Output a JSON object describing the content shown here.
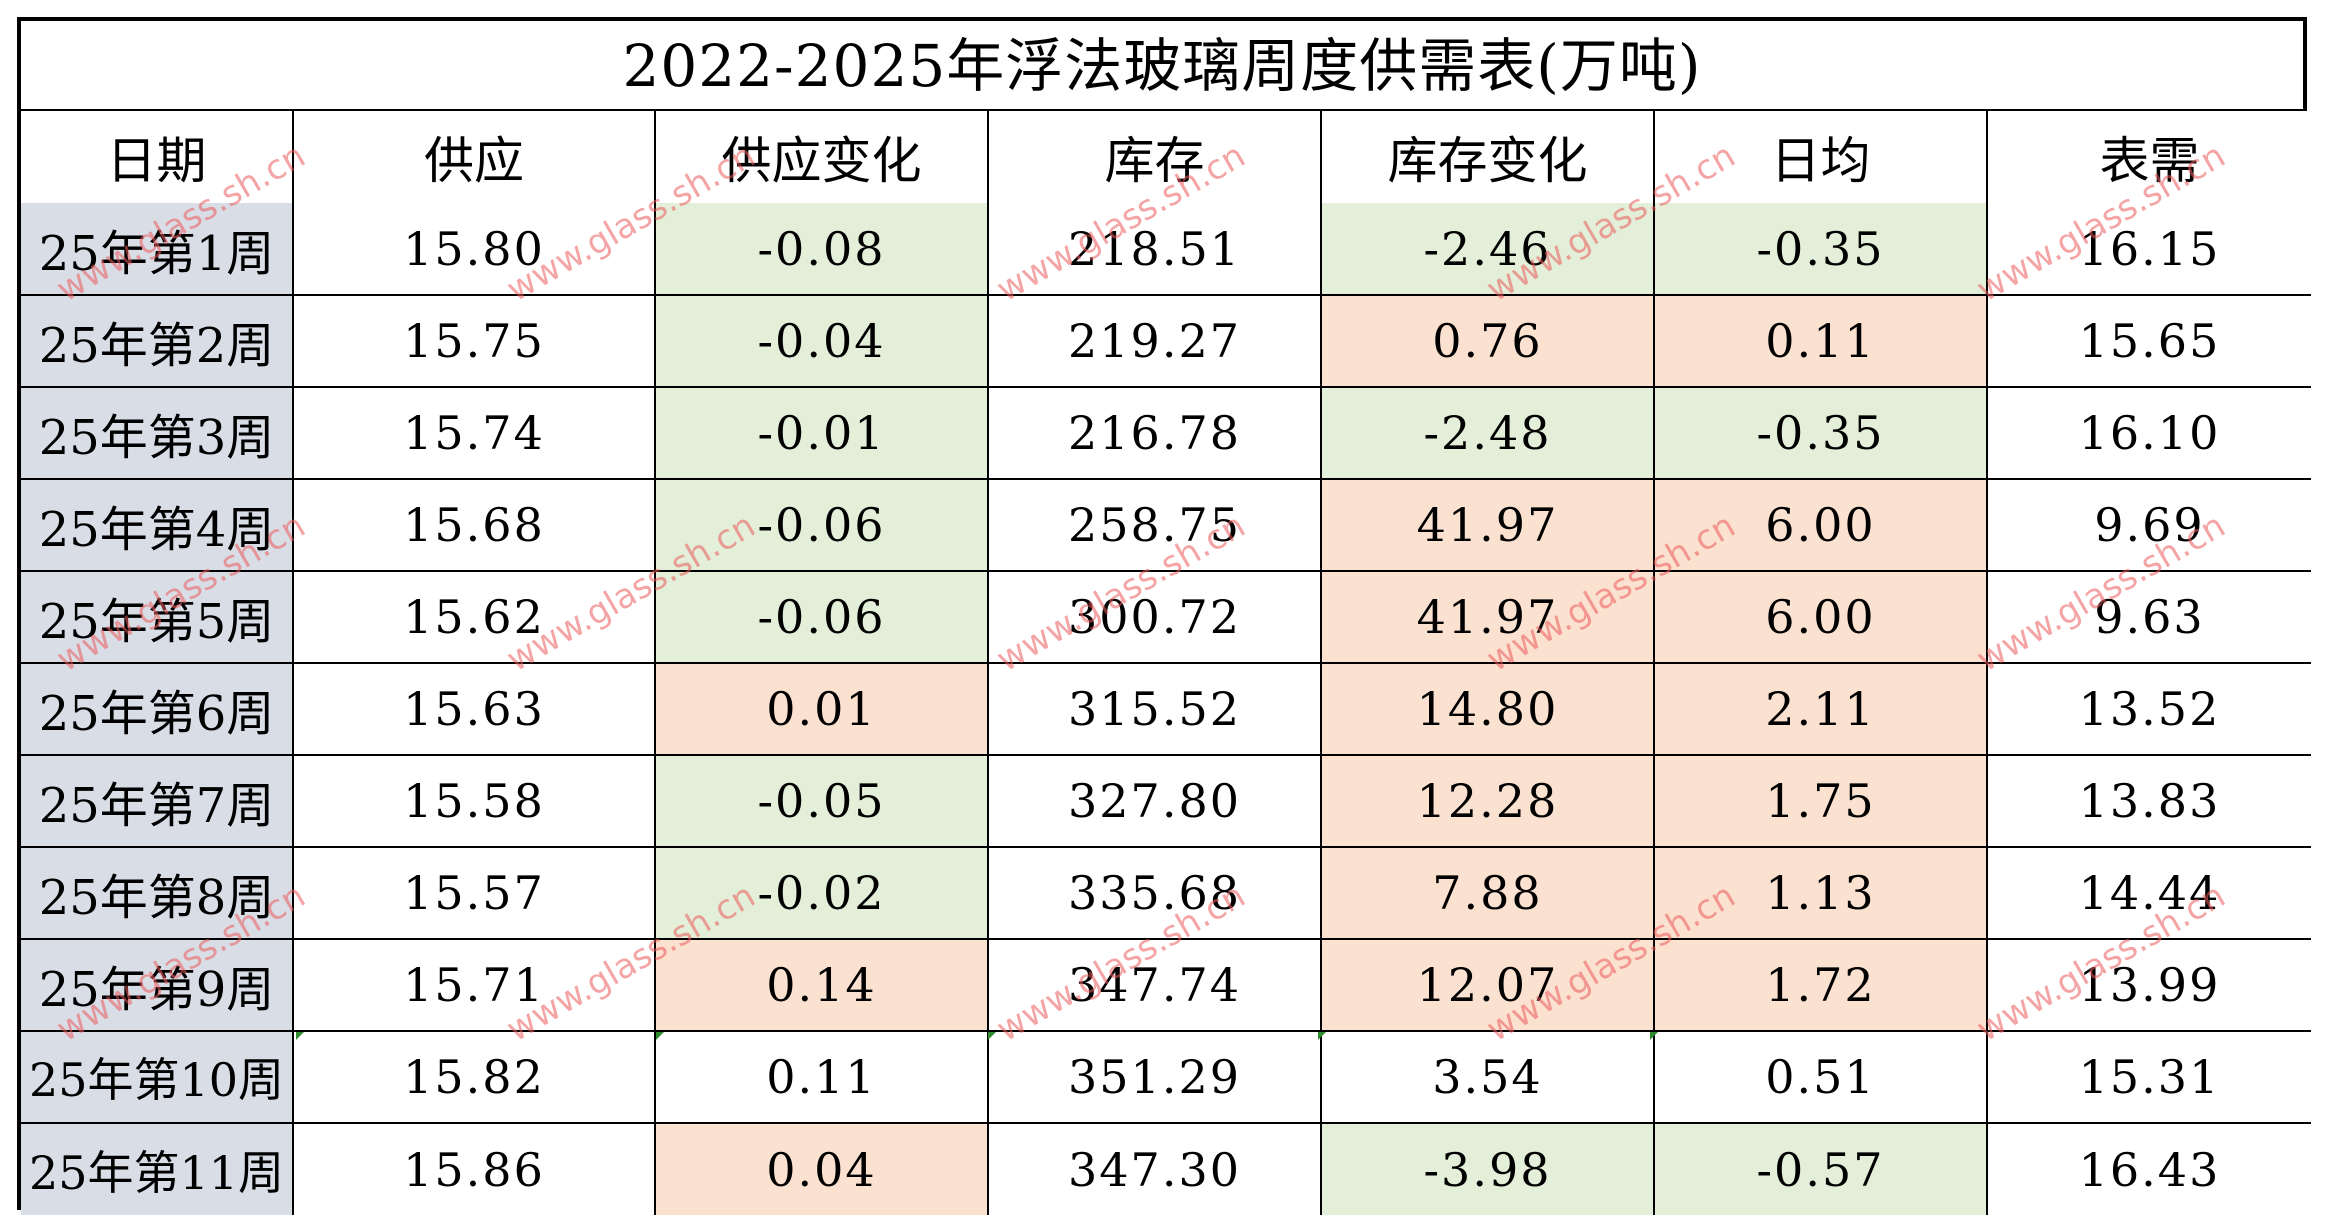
{
  "title": "2022-2025年浮法玻璃周度供需表(万吨)",
  "headers": [
    "日期",
    "供应",
    "供应变化",
    "库存",
    "库存变化",
    "日均",
    "表需"
  ],
  "watermark": "www.glass.sh.cn",
  "colors": {
    "date_bg": "#d9dde6",
    "negative_bg": "#e3efd9",
    "positive_bg": "#fbe1d0",
    "border": "#000000",
    "watermark": "#eb5a5a"
  },
  "rows": [
    {
      "date": "25年第1周",
      "supply": "15.80",
      "supply_change": "-0.08",
      "inventory": "218.51",
      "inventory_change": "-2.46",
      "daily_avg": "-0.35",
      "demand": "16.15",
      "shade": [
        "neg",
        "neg",
        "neg"
      ]
    },
    {
      "date": "25年第2周",
      "supply": "15.75",
      "supply_change": "-0.04",
      "inventory": "219.27",
      "inventory_change": "0.76",
      "daily_avg": "0.11",
      "demand": "15.65",
      "shade": [
        "neg",
        "pos",
        "pos"
      ]
    },
    {
      "date": "25年第3周",
      "supply": "15.74",
      "supply_change": "-0.01",
      "inventory": "216.78",
      "inventory_change": "-2.48",
      "daily_avg": "-0.35",
      "demand": "16.10",
      "shade": [
        "neg",
        "neg",
        "neg"
      ]
    },
    {
      "date": "25年第4周",
      "supply": "15.68",
      "supply_change": "-0.06",
      "inventory": "258.75",
      "inventory_change": "41.97",
      "daily_avg": "6.00",
      "demand": "9.69",
      "shade": [
        "neg",
        "pos",
        "pos"
      ]
    },
    {
      "date": "25年第5周",
      "supply": "15.62",
      "supply_change": "-0.06",
      "inventory": "300.72",
      "inventory_change": "41.97",
      "daily_avg": "6.00",
      "demand": "9.63",
      "shade": [
        "neg",
        "pos",
        "pos"
      ]
    },
    {
      "date": "25年第6周",
      "supply": "15.63",
      "supply_change": "0.01",
      "inventory": "315.52",
      "inventory_change": "14.80",
      "daily_avg": "2.11",
      "demand": "13.52",
      "shade": [
        "pos",
        "pos",
        "pos"
      ]
    },
    {
      "date": "25年第7周",
      "supply": "15.58",
      "supply_change": "-0.05",
      "inventory": "327.80",
      "inventory_change": "12.28",
      "daily_avg": "1.75",
      "demand": "13.83",
      "shade": [
        "neg",
        "pos",
        "pos"
      ]
    },
    {
      "date": "25年第8周",
      "supply": "15.57",
      "supply_change": "-0.02",
      "inventory": "335.68",
      "inventory_change": "7.88",
      "daily_avg": "1.13",
      "demand": "14.44",
      "shade": [
        "neg",
        "pos",
        "pos"
      ]
    },
    {
      "date": "25年第9周",
      "supply": "15.71",
      "supply_change": "0.14",
      "inventory": "347.74",
      "inventory_change": "12.07",
      "daily_avg": "1.72",
      "demand": "13.99",
      "shade": [
        "pos",
        "pos",
        "pos"
      ]
    },
    {
      "date": "25年第10周",
      "supply": "15.82",
      "supply_change": "0.11",
      "inventory": "351.29",
      "inventory_change": "3.54",
      "daily_avg": "0.51",
      "demand": "15.31",
      "shade": [
        "plain",
        "plain",
        "plain"
      ]
    },
    {
      "date": "25年第11周",
      "supply": "15.86",
      "supply_change": "0.04",
      "inventory": "347.30",
      "inventory_change": "-3.98",
      "daily_avg": "-0.57",
      "demand": "16.43",
      "shade": [
        "pos",
        "neg",
        "neg"
      ]
    }
  ]
}
